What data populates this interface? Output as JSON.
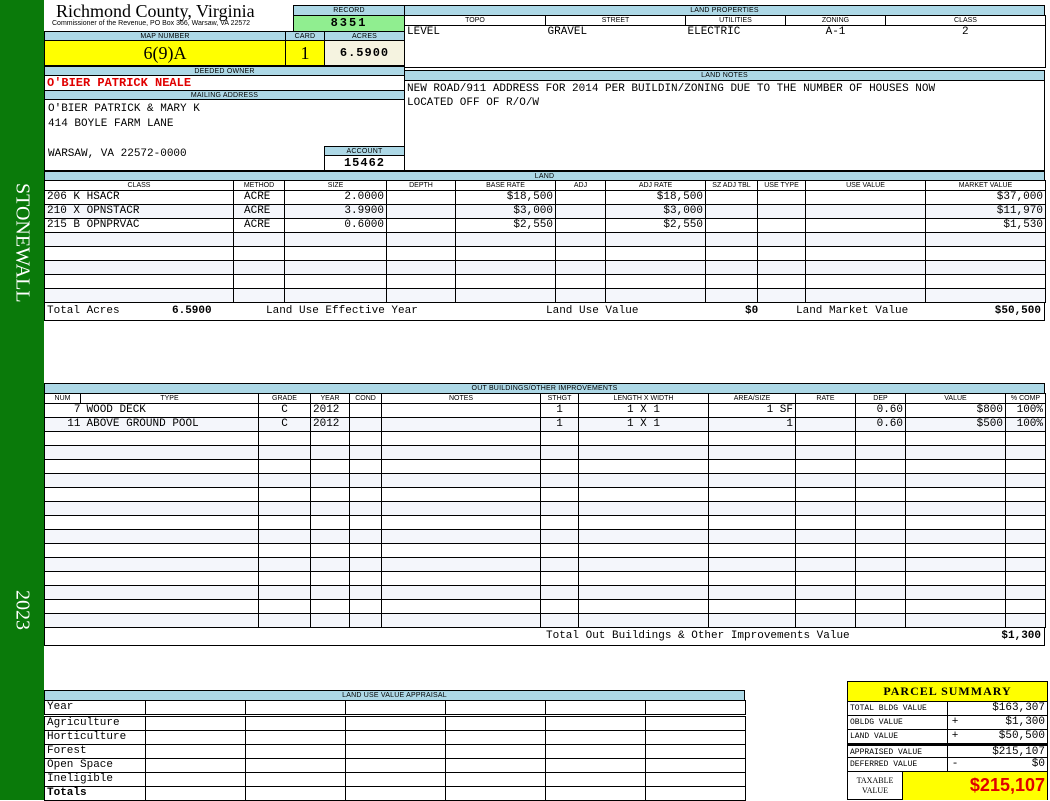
{
  "side": {
    "district": "STONEWALL",
    "year": "2023"
  },
  "header": {
    "county": "Richmond County, Virginia",
    "subtitle": "Commissioner of the Revenue, PO Box 366, Warsaw, VA 22572"
  },
  "record": {
    "label": "RECORD",
    "value": "8351"
  },
  "map": {
    "map_label": "MAP NUMBER",
    "map_value": "6(9)A",
    "card_label": "CARD",
    "card_value": "1",
    "acres_label": "ACRES",
    "acres_value": "6.5900"
  },
  "owner": {
    "label": "DEEDED OWNER",
    "value": "O'BIER PATRICK NEALE"
  },
  "mailing": {
    "label": "MAILING ADDRESS",
    "line1": "O'BIER PATRICK & MARY K",
    "line2": "414 BOYLE FARM LANE",
    "line3": "WARSAW, VA 22572-0000"
  },
  "account": {
    "label": "ACCOUNT",
    "value": "15462"
  },
  "land_properties": {
    "label": "LAND PROPERTIES",
    "headers": [
      "TOPO",
      "STREET",
      "UTILITIES",
      "ZONING",
      "CLASS"
    ],
    "values": [
      "LEVEL",
      "GRAVEL",
      "ELECTRIC",
      "A-1",
      "2"
    ]
  },
  "land_notes": {
    "label": "LAND NOTES",
    "line1": "NEW ROAD/911 ADDRESS FOR 2014 PER BUILDIN/ZONING DUE TO THE NUMBER OF HOUSES NOW",
    "line2": "LOCATED OFF OF R/O/W"
  },
  "land": {
    "label": "LAND",
    "headers": [
      "CLASS",
      "METHOD",
      "SIZE",
      "DEPTH",
      "BASE RATE",
      "ADJ",
      "ADJ RATE",
      "SZ ADJ TBL",
      "USE TYPE",
      "USE VALUE",
      "MARKET VALUE"
    ],
    "rows": [
      [
        "206 K HSACR",
        "ACRE",
        "2.0000",
        "",
        "$18,500",
        "",
        "$18,500",
        "",
        "",
        "",
        "$37,000"
      ],
      [
        "210 X OPNSTACR",
        "ACRE",
        "3.9900",
        "",
        "$3,000",
        "",
        "$3,000",
        "",
        "",
        "",
        "$11,970"
      ],
      [
        "215 B OPNPRVAC",
        "ACRE",
        "0.6000",
        "",
        "$2,550",
        "",
        "$2,550",
        "",
        "",
        "",
        "$1,530"
      ]
    ],
    "totals": {
      "total_acres_label": "Total Acres",
      "total_acres": "6.5900",
      "effective_year_label": "Land Use Effective Year",
      "use_value_label": "Land Use Value",
      "use_value": "$0",
      "market_value_label": "Land Market Value",
      "market_value": "$50,500"
    }
  },
  "outbuildings": {
    "label": "OUT BUILDINGS/OTHER IMPROVEMENTS",
    "headers": [
      "NUM",
      "TYPE",
      "GRADE",
      "YEAR",
      "COND",
      "NOTES",
      "STHGT",
      "LENGTH X WIDTH",
      "AREA/SIZE",
      "RATE",
      "DEP",
      "VALUE",
      "% COMP"
    ],
    "rows": [
      [
        "7",
        "WOOD DECK",
        "C",
        "2012",
        "",
        "",
        "1",
        "1 X 1",
        "1 SF",
        "",
        "0.60",
        "$800",
        "100%"
      ],
      [
        "11",
        "ABOVE GROUND POOL",
        "C",
        "2012",
        "",
        "",
        "1",
        "1 X 1",
        "1",
        "",
        "0.60",
        "$500",
        "100%"
      ]
    ],
    "total_label": "Total Out Buildings & Other Improvements Value",
    "total_value": "$1,300"
  },
  "land_use": {
    "label": "LAND USE VALUE APPRAISAL",
    "year_label": "Year",
    "rows": [
      "Agriculture",
      "Horticulture",
      "Forest",
      "Open Space",
      "Ineligible"
    ],
    "totals_label": "Totals"
  },
  "summary": {
    "title": "PARCEL SUMMARY",
    "rows": [
      {
        "label": "TOTAL BLDG VALUE",
        "sign": "",
        "value": "$163,307"
      },
      {
        "label": "OBLDG VALUE",
        "sign": "+",
        "value": "$1,300"
      },
      {
        "label": "LAND VALUE",
        "sign": "+",
        "value": "$50,500"
      },
      {
        "label": "APPRAISED VALUE",
        "sign": "",
        "value": "$215,107"
      },
      {
        "label": "DEFERRED VALUE",
        "sign": "-",
        "value": "$0"
      }
    ],
    "taxable_label": "TAXABLE VALUE",
    "taxable_value": "$215,107"
  },
  "colors": {
    "sidebar": "#0a7a0a",
    "header_band": "#add8e6",
    "highlight": "#ffff00",
    "record": "#90ee90",
    "owner": "#e00000"
  }
}
